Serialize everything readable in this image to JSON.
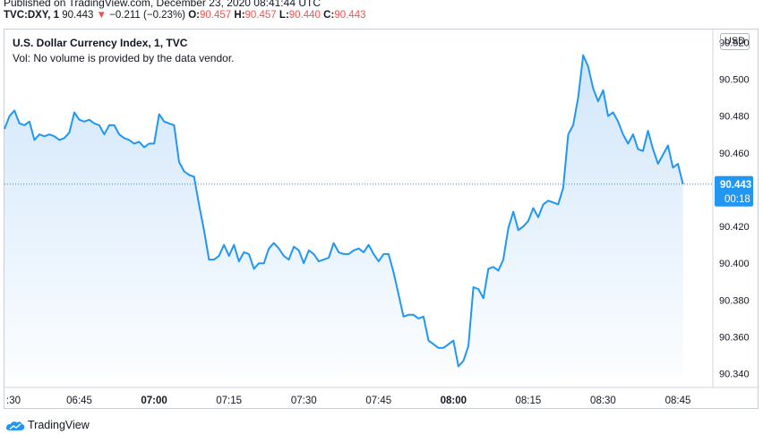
{
  "header": {
    "published": "Published on TradingView.com, December 23, 2020 08:41:44 UTC",
    "symbol": "TVC:DXY, 1",
    "last": "90.443",
    "change_arrow": "▼",
    "change": "−0.211 (−0.23%)",
    "o_label": "O:",
    "o": "90.457",
    "h_label": "H:",
    "h": "90.457",
    "l_label": "L:",
    "l": "90.440",
    "c_label": "C:",
    "c": "90.443"
  },
  "legend": {
    "title": "U.S. Dollar Currency Index, 1, TVC",
    "volume_note": "Vol: No volume is provided by the data vendor."
  },
  "currency_button": "USD",
  "footer": {
    "brand": "TradingView",
    "icon": "tradingview-cloud-icon"
  },
  "colors": {
    "line": "#2196f3",
    "fill_top": "#cfe5fb",
    "price_tag": "#2196f3",
    "negative": "#ef5350"
  },
  "chart_data": {
    "type": "area",
    "title": "U.S. Dollar Currency Index, 1, TVC",
    "xlabel": "",
    "ylabel": "",
    "x_unit": "minutes after 06:30 UTC",
    "x_tick_labels": [
      ":30",
      "06:45",
      "07:00",
      "07:15",
      "07:30",
      "07:45",
      "08:00",
      "08:15",
      "08:30",
      "08:45"
    ],
    "x_tick_values": [
      0,
      15,
      30,
      45,
      60,
      75,
      90,
      105,
      120,
      135
    ],
    "bold_x_ticks": [
      "07:00",
      "08:00"
    ],
    "y_ticks": [
      90.34,
      90.36,
      90.38,
      90.4,
      90.42,
      90.44,
      90.46,
      90.48,
      90.5,
      90.52
    ],
    "y_tick_labels": [
      "90.340",
      "90.360",
      "90.380",
      "90.400",
      "90.420",
      "90.440",
      "90.460",
      "90.480",
      "90.500",
      "90.520"
    ],
    "ylim": [
      90.333,
      90.527
    ],
    "xlim": [
      0,
      142
    ],
    "last_price": 90.443,
    "last_price_label": "90.443",
    "countdown": "00:18",
    "grid": false,
    "series": [
      {
        "values": [
          [
            0,
            90.473
          ],
          [
            1,
            90.48
          ],
          [
            2,
            90.483
          ],
          [
            3,
            90.476
          ],
          [
            4,
            90.475
          ],
          [
            5,
            90.477
          ],
          [
            6,
            90.467
          ],
          [
            7,
            90.47
          ],
          [
            8,
            90.469
          ],
          [
            9,
            90.47
          ],
          [
            10,
            90.469
          ],
          [
            11,
            90.467
          ],
          [
            12,
            90.468
          ],
          [
            13,
            90.471
          ],
          [
            14,
            90.482
          ],
          [
            15,
            90.478
          ],
          [
            16,
            90.477
          ],
          [
            17,
            90.478
          ],
          [
            18,
            90.476
          ],
          [
            19,
            90.475
          ],
          [
            20,
            90.47
          ],
          [
            21,
            90.475
          ],
          [
            22,
            90.475
          ],
          [
            23,
            90.47
          ],
          [
            24,
            90.468
          ],
          [
            25,
            90.467
          ],
          [
            26,
            90.465
          ],
          [
            27,
            90.466
          ],
          [
            28,
            90.463
          ],
          [
            29,
            90.465
          ],
          [
            30,
            90.465
          ],
          [
            31,
            90.481
          ],
          [
            32,
            90.477
          ],
          [
            33,
            90.476
          ],
          [
            34,
            90.475
          ],
          [
            35,
            90.455
          ],
          [
            36,
            90.45
          ],
          [
            37,
            90.448
          ],
          [
            38,
            90.447
          ],
          [
            39,
            90.432
          ],
          [
            40,
            90.418
          ],
          [
            41,
            90.402
          ],
          [
            42,
            90.402
          ],
          [
            43,
            90.404
          ],
          [
            44,
            90.41
          ],
          [
            45,
            90.404
          ],
          [
            46,
            90.41
          ],
          [
            47,
            90.401
          ],
          [
            48,
            90.406
          ],
          [
            49,
            90.405
          ],
          [
            50,
            90.397
          ],
          [
            51,
            90.4
          ],
          [
            52,
            90.4
          ],
          [
            53,
            90.408
          ],
          [
            54,
            90.411
          ],
          [
            55,
            90.408
          ],
          [
            56,
            90.404
          ],
          [
            57,
            90.402
          ],
          [
            58,
            90.409
          ],
          [
            59,
            90.407
          ],
          [
            60,
            90.4
          ],
          [
            61,
            90.407
          ],
          [
            62,
            90.405
          ],
          [
            63,
            90.401
          ],
          [
            64,
            90.402
          ],
          [
            65,
            90.403
          ],
          [
            66,
            90.411
          ],
          [
            67,
            90.406
          ],
          [
            68,
            90.405
          ],
          [
            69,
            90.405
          ],
          [
            70,
            90.407
          ],
          [
            71,
            90.408
          ],
          [
            72,
            90.406
          ],
          [
            73,
            90.41
          ],
          [
            74,
            90.405
          ],
          [
            75,
            90.401
          ],
          [
            76,
            90.405
          ],
          [
            77,
            90.405
          ],
          [
            78,
            90.395
          ],
          [
            79,
            90.383
          ],
          [
            80,
            90.371
          ],
          [
            81,
            90.372
          ],
          [
            82,
            90.372
          ],
          [
            83,
            90.37
          ],
          [
            84,
            90.371
          ],
          [
            85,
            90.358
          ],
          [
            86,
            90.356
          ],
          [
            87,
            90.354
          ],
          [
            88,
            90.354
          ],
          [
            89,
            90.356
          ],
          [
            90,
            90.358
          ],
          [
            91,
            90.344
          ],
          [
            92,
            90.347
          ],
          [
            93,
            90.355
          ],
          [
            94,
            90.387
          ],
          [
            95,
            90.386
          ],
          [
            96,
            90.381
          ],
          [
            97,
            90.397
          ],
          [
            98,
            90.398
          ],
          [
            99,
            90.396
          ],
          [
            100,
            90.402
          ],
          [
            101,
            90.419
          ],
          [
            102,
            90.428
          ],
          [
            103,
            90.418
          ],
          [
            104,
            90.42
          ],
          [
            105,
            90.423
          ],
          [
            106,
            90.43
          ],
          [
            107,
            90.425
          ],
          [
            108,
            90.432
          ],
          [
            109,
            90.434
          ],
          [
            110,
            90.433
          ],
          [
            111,
            90.432
          ],
          [
            112,
            90.441
          ],
          [
            113,
            90.47
          ],
          [
            114,
            90.475
          ],
          [
            115,
            90.49
          ],
          [
            116,
            90.513
          ],
          [
            117,
            90.507
          ],
          [
            118,
            90.495
          ],
          [
            119,
            90.488
          ],
          [
            120,
            90.494
          ],
          [
            121,
            90.48
          ],
          [
            122,
            90.482
          ],
          [
            123,
            90.477
          ],
          [
            124,
            90.47
          ],
          [
            125,
            90.465
          ],
          [
            126,
            90.47
          ],
          [
            127,
            90.462
          ],
          [
            128,
            90.461
          ],
          [
            129,
            90.472
          ],
          [
            130,
            90.462
          ],
          [
            131,
            90.454
          ],
          [
            132,
            90.459
          ],
          [
            133,
            90.464
          ],
          [
            134,
            90.452
          ],
          [
            135,
            90.454
          ],
          [
            136,
            90.443
          ]
        ]
      }
    ]
  }
}
